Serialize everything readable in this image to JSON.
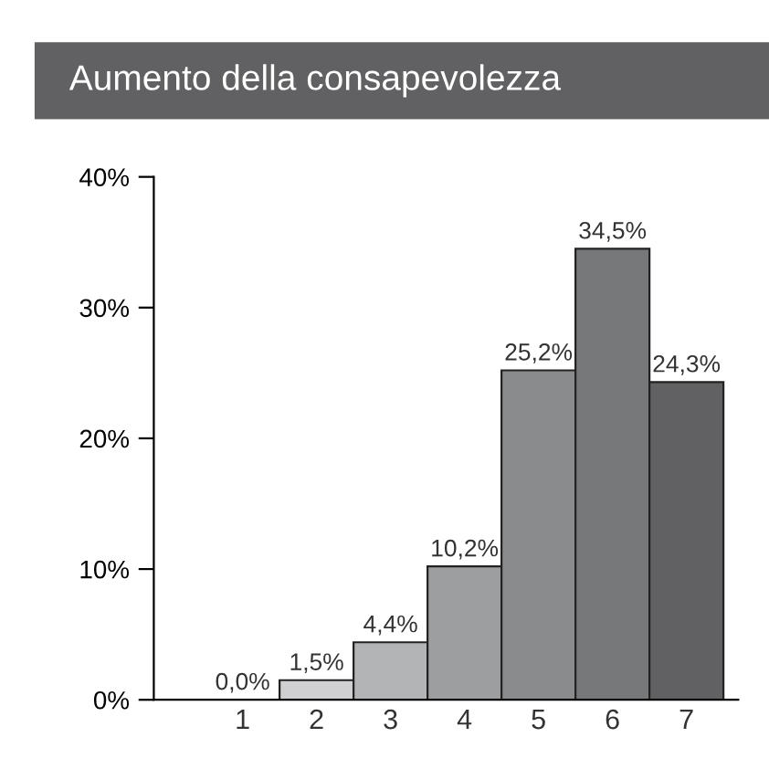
{
  "chart_data": {
    "type": "bar",
    "title": "Aumento della consapevolezza",
    "categories": [
      "1",
      "2",
      "3",
      "4",
      "5",
      "6",
      "7"
    ],
    "values": [
      0.0,
      1.5,
      4.4,
      10.2,
      25.2,
      34.5,
      24.3
    ],
    "value_labels": [
      "0,0%",
      "1,5%",
      "4,4%",
      "10,2%",
      "25,2%",
      "34,5%",
      "24,3%"
    ],
    "colors": [
      "#222222",
      "#d0d0d2",
      "#b3b4b6",
      "#9d9ea0",
      "#8a8b8d",
      "#77787a",
      "#616163"
    ],
    "ylim": [
      0,
      40
    ],
    "yticks": [
      {
        "value": 0,
        "label": "0%"
      },
      {
        "value": 10,
        "label": "10%"
      },
      {
        "value": 20,
        "label": "20%"
      },
      {
        "value": 30,
        "label": "30%"
      },
      {
        "value": 40,
        "label": "40%"
      }
    ],
    "grid": false,
    "legend": false
  }
}
